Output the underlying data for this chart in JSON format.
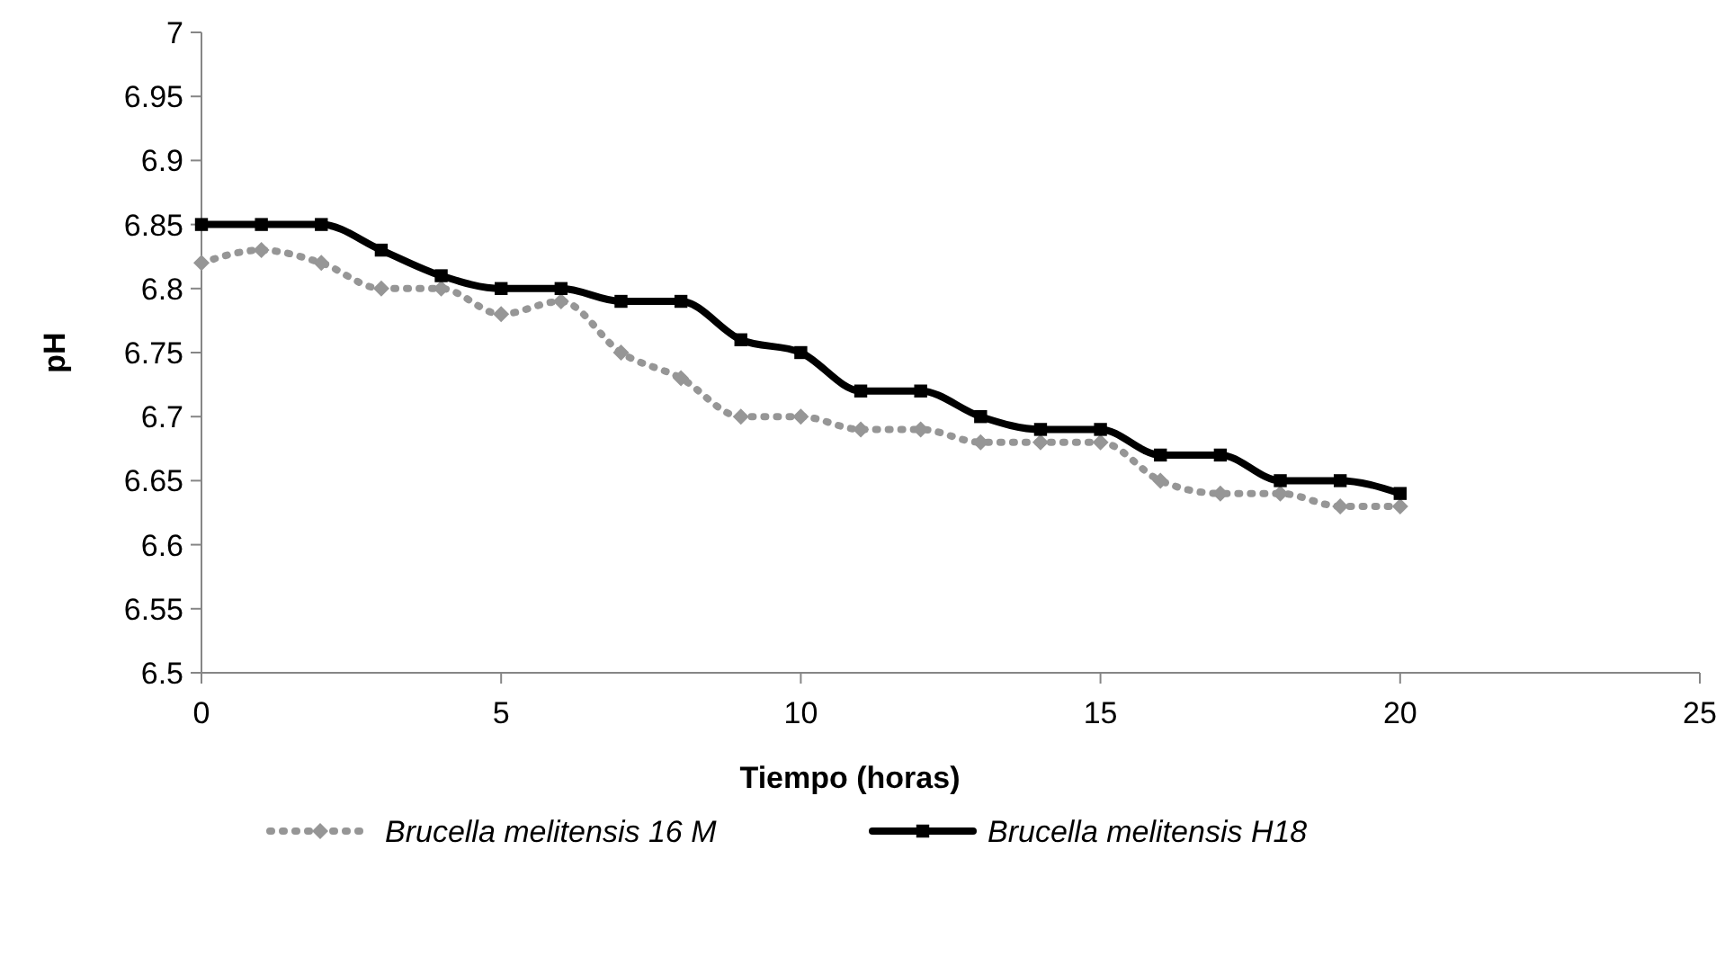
{
  "chart_data": {
    "type": "line",
    "xlabel": "Tiempo (horas)",
    "ylabel": "pH",
    "x": [
      0,
      1,
      2,
      3,
      4,
      5,
      6,
      7,
      8,
      9,
      10,
      11,
      12,
      13,
      14,
      15,
      16,
      17,
      18,
      19,
      20
    ],
    "series": [
      {
        "name": "Brucella melitensis 16 M",
        "color": "#969696",
        "marker": "diamond",
        "line_style": "dotted",
        "values": [
          6.82,
          6.83,
          6.82,
          6.8,
          6.8,
          6.78,
          6.79,
          6.75,
          6.73,
          6.7,
          6.7,
          6.69,
          6.69,
          6.68,
          6.68,
          6.68,
          6.65,
          6.64,
          6.64,
          6.63,
          6.63
        ]
      },
      {
        "name": "Brucella melitensis H18",
        "color": "#000000",
        "marker": "square",
        "line_style": "solid",
        "values": [
          6.85,
          6.85,
          6.85,
          6.83,
          6.81,
          6.8,
          6.8,
          6.79,
          6.79,
          6.76,
          6.75,
          6.72,
          6.72,
          6.7,
          6.69,
          6.69,
          6.67,
          6.67,
          6.65,
          6.65,
          6.64
        ]
      }
    ],
    "xlim": [
      0,
      25
    ],
    "xticks": [
      0,
      5,
      10,
      15,
      20,
      25
    ],
    "ylim": [
      6.5,
      7
    ],
    "yticks": [
      6.5,
      6.55,
      6.6,
      6.65,
      6.7,
      6.75,
      6.8,
      6.85,
      6.9,
      6.95,
      7
    ],
    "grid": false,
    "legend": "bottom"
  }
}
